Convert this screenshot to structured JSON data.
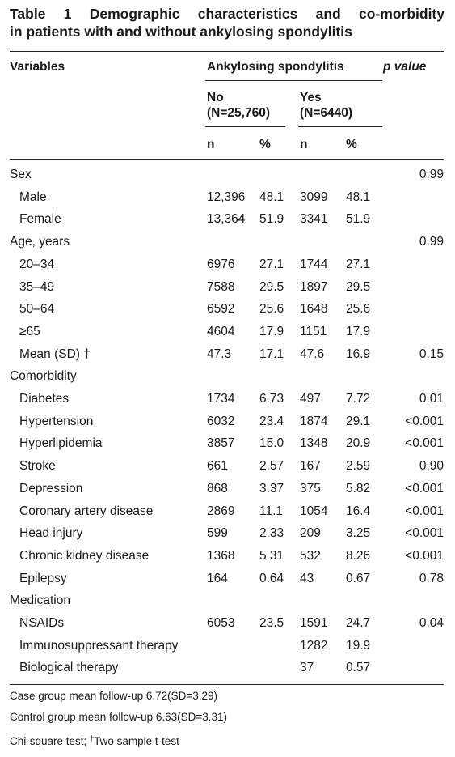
{
  "title": {
    "line1": "Table 1 Demographic characteristics and co-morbidity",
    "line2": "in patients with and without ankylosing spondylitis"
  },
  "header": {
    "variables": "Variables",
    "group": "Ankylosing spondylitis",
    "pvalue": "p value",
    "no_label": "No",
    "no_n": "(N=25,760)",
    "yes_label": "Yes",
    "yes_n": "(N=6440)",
    "n1": "n",
    "pct1": "%",
    "n2": "n",
    "pct2": "%"
  },
  "rows": [
    {
      "label": "Sex",
      "section": true,
      "no_n": "",
      "no_pct": "",
      "yes_n": "",
      "yes_pct": "",
      "p": "0.99"
    },
    {
      "label": "Male",
      "section": false,
      "no_n": "12,396",
      "no_pct": "48.1",
      "yes_n": "3099",
      "yes_pct": "48.1",
      "p": ""
    },
    {
      "label": "Female",
      "section": false,
      "no_n": "13,364",
      "no_pct": "51.9",
      "yes_n": "3341",
      "yes_pct": "51.9",
      "p": ""
    },
    {
      "label": "Age, years",
      "section": true,
      "no_n": "",
      "no_pct": "",
      "yes_n": "",
      "yes_pct": "",
      "p": "0.99"
    },
    {
      "label": "20–34",
      "section": false,
      "no_n": "6976",
      "no_pct": "27.1",
      "yes_n": "1744",
      "yes_pct": "27.1",
      "p": ""
    },
    {
      "label": "35–49",
      "section": false,
      "no_n": "7588",
      "no_pct": "29.5",
      "yes_n": "1897",
      "yes_pct": "29.5",
      "p": ""
    },
    {
      "label": "50–64",
      "section": false,
      "no_n": "6592",
      "no_pct": "25.6",
      "yes_n": "1648",
      "yes_pct": "25.6",
      "p": ""
    },
    {
      "label": "≥65",
      "section": false,
      "no_n": "4604",
      "no_pct": "17.9",
      "yes_n": "1151",
      "yes_pct": "17.9",
      "p": ""
    },
    {
      "label": "Mean (SD) †",
      "section": false,
      "no_n": "47.3",
      "no_pct": "17.1",
      "yes_n": "47.6",
      "yes_pct": "16.9",
      "p": "0.15"
    },
    {
      "label": "Comorbidity",
      "section": true,
      "no_n": "",
      "no_pct": "",
      "yes_n": "",
      "yes_pct": "",
      "p": ""
    },
    {
      "label": "Diabetes",
      "section": false,
      "no_n": "1734",
      "no_pct": "6.73",
      "yes_n": "497",
      "yes_pct": "7.72",
      "p": "0.01"
    },
    {
      "label": "Hypertension",
      "section": false,
      "no_n": "6032",
      "no_pct": "23.4",
      "yes_n": "1874",
      "yes_pct": "29.1",
      "p": "<0.001"
    },
    {
      "label": "Hyperlipidemia",
      "section": false,
      "no_n": "3857",
      "no_pct": "15.0",
      "yes_n": "1348",
      "yes_pct": "20.9",
      "p": "<0.001"
    },
    {
      "label": "Stroke",
      "section": false,
      "no_n": "661",
      "no_pct": "2.57",
      "yes_n": "167",
      "yes_pct": "2.59",
      "p": "0.90"
    },
    {
      "label": "Depression",
      "section": false,
      "no_n": "868",
      "no_pct": "3.37",
      "yes_n": "375",
      "yes_pct": "5.82",
      "p": "<0.001"
    },
    {
      "label": "Coronary artery disease",
      "section": false,
      "no_n": "2869",
      "no_pct": "11.1",
      "yes_n": "1054",
      "yes_pct": "16.4",
      "p": "<0.001"
    },
    {
      "label": "Head injury",
      "section": false,
      "no_n": "599",
      "no_pct": "2.33",
      "yes_n": "209",
      "yes_pct": "3.25",
      "p": "<0.001"
    },
    {
      "label": "Chronic kidney disease",
      "section": false,
      "no_n": "1368",
      "no_pct": "5.31",
      "yes_n": "532",
      "yes_pct": "8.26",
      "p": "<0.001"
    },
    {
      "label": "Epilepsy",
      "section": false,
      "no_n": "164",
      "no_pct": "0.64",
      "yes_n": "43",
      "yes_pct": "0.67",
      "p": "0.78"
    },
    {
      "label": "Medication",
      "section": true,
      "no_n": "",
      "no_pct": "",
      "yes_n": "",
      "yes_pct": "",
      "p": ""
    },
    {
      "label": "NSAIDs",
      "section": false,
      "no_n": "6053",
      "no_pct": "23.5",
      "yes_n": "1591",
      "yes_pct": "24.7",
      "p": "0.04"
    },
    {
      "label": "Immunosuppressant therapy",
      "section": false,
      "no_n": "",
      "no_pct": "",
      "yes_n": "1282",
      "yes_pct": "19.9",
      "p": ""
    },
    {
      "label": "Biological therapy",
      "section": false,
      "no_n": "",
      "no_pct": "",
      "yes_n": "37",
      "yes_pct": "0.57",
      "p": ""
    }
  ],
  "footnotes": {
    "f1": "Case group mean follow-up 6.72(SD=3.29)",
    "f2": "Control group mean follow-up 6.63(SD=3.31)",
    "f3_pre": "Chi-square test; ",
    "f3_mark": "†",
    "f3_post": "Two sample t-test"
  }
}
